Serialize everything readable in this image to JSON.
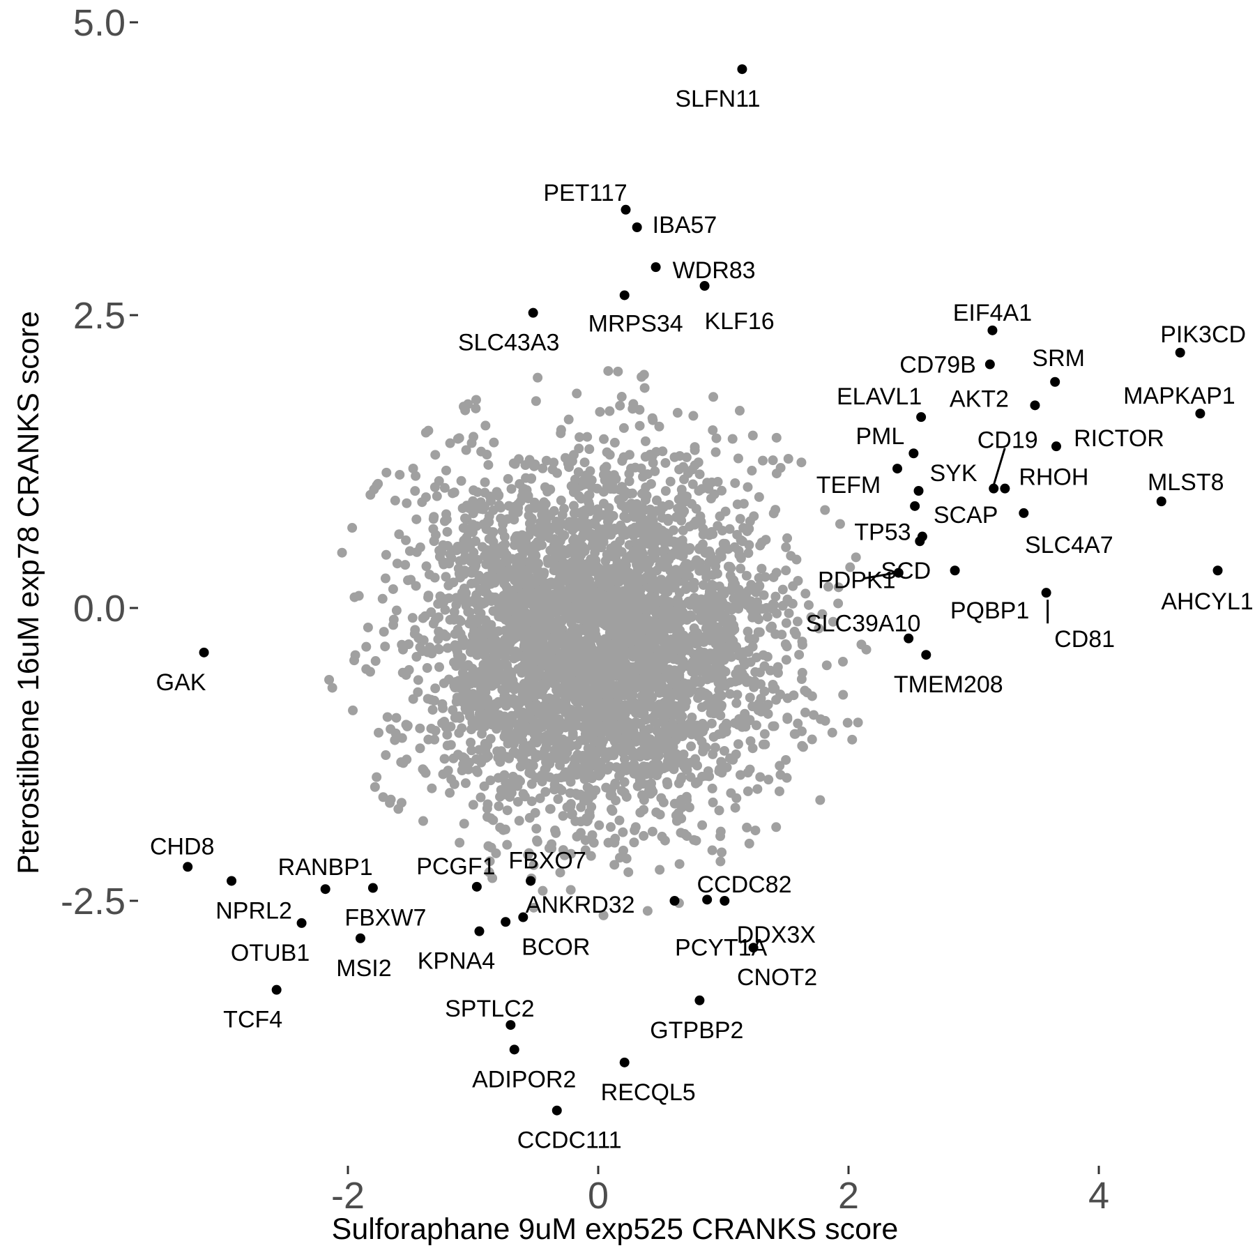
{
  "chart_data": {
    "type": "scatter",
    "title": "",
    "xlabel": "Sulforaphane 9uM exp525 CRANKS score",
    "ylabel": "Pterostilbene 16uM exp78 CRANKS score",
    "xlim": [
      -3.35,
      5.05
    ],
    "ylim": [
      -3.45,
      5.05
    ],
    "x_ticks": [
      -2,
      0,
      2,
      4
    ],
    "x_tick_labels": [
      "-2",
      "0",
      "2",
      "4"
    ],
    "y_ticks": [
      -2.5,
      0.0,
      2.5,
      5.0
    ],
    "y_tick_labels": [
      "-2.5",
      "0.0",
      "2.5",
      "5.0"
    ],
    "grid": false,
    "legend": "none",
    "colors": {
      "background_points": "#a0a0a0",
      "highlight_points": "#000000",
      "tick_text": "#4d4d4d"
    },
    "background_cloud": {
      "description": "thousands of grey points (all other genes) forming a dense roughly circular cloud",
      "center": [
        0.0,
        -0.3
      ],
      "sd": [
        0.7,
        0.75
      ],
      "n_points": 4000
    },
    "points": [
      {
        "gene": "SLFN11",
        "x": 1.15,
        "y": 4.6
      },
      {
        "gene": "PET117",
        "x": 0.22,
        "y": 3.4
      },
      {
        "gene": "IBA57",
        "x": 0.31,
        "y": 3.25
      },
      {
        "gene": "WDR83",
        "x": 0.46,
        "y": 2.91
      },
      {
        "gene": "KLF16",
        "x": 0.85,
        "y": 2.75
      },
      {
        "gene": "MRPS34",
        "x": 0.21,
        "y": 2.67
      },
      {
        "gene": "SLC43A3",
        "x": -0.52,
        "y": 2.52
      },
      {
        "gene": "EIF4A1",
        "x": 3.15,
        "y": 2.37
      },
      {
        "gene": "PIK3CD",
        "x": 4.65,
        "y": 2.18
      },
      {
        "gene": "CD79B",
        "x": 3.13,
        "y": 2.08
      },
      {
        "gene": "SRM",
        "x": 3.65,
        "y": 1.93
      },
      {
        "gene": "AKT2",
        "x": 3.49,
        "y": 1.73
      },
      {
        "gene": "MAPKAP1",
        "x": 4.81,
        "y": 1.66
      },
      {
        "gene": "ELAVL1",
        "x": 2.58,
        "y": 1.63
      },
      {
        "gene": "RICTOR",
        "x": 3.66,
        "y": 1.38
      },
      {
        "gene": "PML",
        "x": 2.52,
        "y": 1.32
      },
      {
        "gene": "TEFM",
        "x": 2.39,
        "y": 1.19
      },
      {
        "gene": "CD19",
        "x": 3.16,
        "y": 1.02
      },
      {
        "gene": "RHOH",
        "x": 3.25,
        "y": 1.02
      },
      {
        "gene": "SYK",
        "x": 2.56,
        "y": 1.0
      },
      {
        "gene": "MLST8",
        "x": 4.5,
        "y": 0.91
      },
      {
        "gene": "SCAP",
        "x": 2.53,
        "y": 0.87
      },
      {
        "gene": "SLC4A7",
        "x": 3.4,
        "y": 0.81
      },
      {
        "gene": "TP53",
        "x": 2.59,
        "y": 0.61
      },
      {
        "gene": "SCD",
        "x": 2.57,
        "y": 0.57
      },
      {
        "gene": "PDPK1",
        "x": 2.4,
        "y": 0.3
      },
      {
        "gene": "PQBP1",
        "x": 2.85,
        "y": 0.32
      },
      {
        "gene": "AHCYL1",
        "x": 4.95,
        "y": 0.32
      },
      {
        "gene": "CD81",
        "x": 3.58,
        "y": 0.13
      },
      {
        "gene": "SLC39A10",
        "x": 2.48,
        "y": -0.26
      },
      {
        "gene": "TMEM208",
        "x": 2.62,
        "y": -0.4
      },
      {
        "gene": "GAK",
        "x": -3.15,
        "y": -0.38
      },
      {
        "gene": "CHD8",
        "x": -3.28,
        "y": -2.21
      },
      {
        "gene": "RANBP1",
        "x": -2.18,
        "y": -2.4
      },
      {
        "gene": "NPRL2",
        "x": -2.93,
        "y": -2.33
      },
      {
        "gene": "FBXW7",
        "x": -1.8,
        "y": -2.39
      },
      {
        "gene": "PCGF1",
        "x": -0.97,
        "y": -2.38
      },
      {
        "gene": "FBXO7",
        "x": -0.54,
        "y": -2.33
      },
      {
        "gene": "OTUB1",
        "x": -2.37,
        "y": -2.69
      },
      {
        "gene": "MSI2",
        "x": -1.9,
        "y": -2.82
      },
      {
        "gene": "KPNA4",
        "x": -0.95,
        "y": -2.76
      },
      {
        "gene": "BCOR",
        "x": -0.6,
        "y": -2.64
      },
      {
        "gene": "ANKRD32",
        "x": -0.74,
        "y": -2.68
      },
      {
        "gene": "CCDC82",
        "x": 0.61,
        "y": -2.5
      },
      {
        "gene": "PCYT1A",
        "x": 0.87,
        "y": -2.49
      },
      {
        "gene": "DDX3X",
        "x": 1.01,
        "y": -2.5
      },
      {
        "gene": "CNOT2",
        "x": 1.24,
        "y": -2.9
      },
      {
        "gene": "TCF4",
        "x": -2.57,
        "y": -3.26
      },
      {
        "gene": "GTPBP2",
        "x": 0.81,
        "y": -3.35
      },
      {
        "gene": "SPTLC2",
        "x": -0.7,
        "y": -3.56
      },
      {
        "gene": "ADIPOR2",
        "x": -0.67,
        "y": -3.77
      },
      {
        "gene": "RECQL5",
        "x": 0.21,
        "y": -3.88
      },
      {
        "gene": "CCDC111",
        "x": -0.33,
        "y": -4.29
      }
    ]
  }
}
